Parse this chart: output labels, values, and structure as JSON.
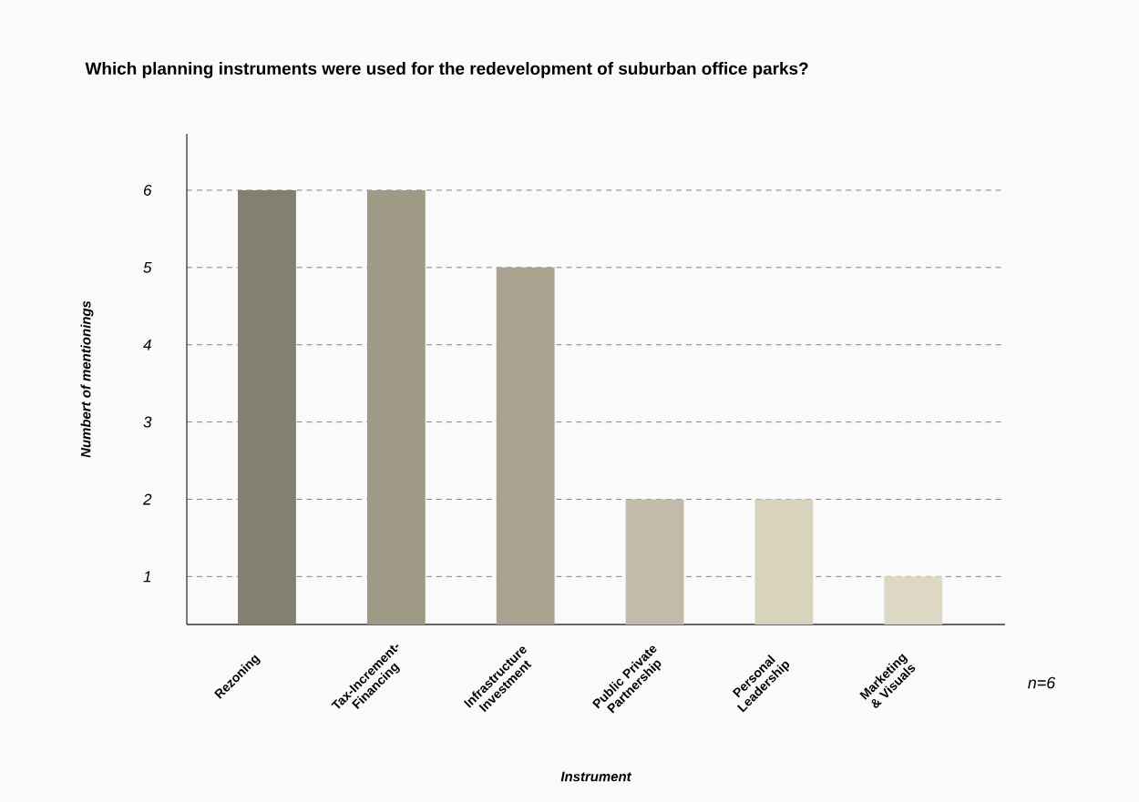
{
  "chart_data": {
    "type": "bar",
    "title": "Which planning instruments were used for the redevelopment of suburban office parks?",
    "xlabel": "Instrument",
    "ylabel": "Numbert of mentionings",
    "categories": [
      "Rezoning",
      "Tax-Increment-Financing",
      "Infrastructure Investment",
      "Public Private Partnership",
      "Personal Leadership",
      "Marketing & Visuals"
    ],
    "values": [
      6,
      6,
      5,
      2,
      2,
      1
    ],
    "colors": [
      "#837f71",
      "#9e9a86",
      "#a8a28f",
      "#c2bbaa",
      "#d8d3bd",
      "#ddd8c4"
    ],
    "ylim": [
      0.38,
      6.73
    ],
    "yticks": [
      1,
      2,
      3,
      4,
      5,
      6
    ],
    "grid": "y",
    "annotations": [
      "n=6"
    ]
  }
}
